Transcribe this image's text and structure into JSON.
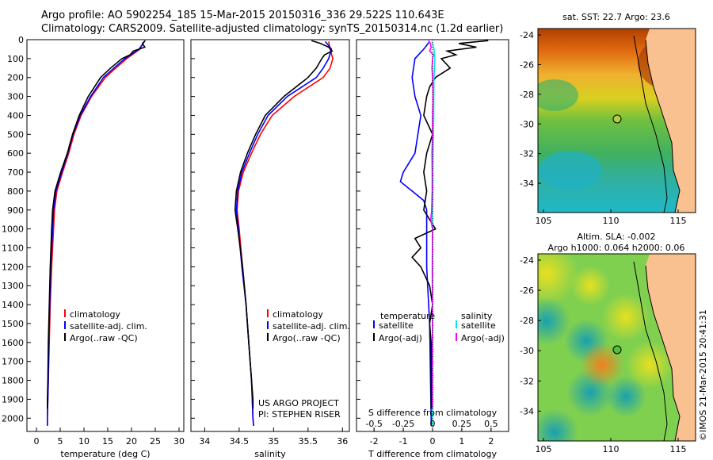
{
  "header": {
    "line1": "Argo profile: AO 5902254_185 15-Mar-2015 20150316_336 29.522S 110.643E",
    "line2": "Climatology: CARS2009. Satellite-adjusted climatology: synTS_20150314.nc (1.2d earlier)"
  },
  "chart_data": [
    {
      "type": "line",
      "xlabel": "temperature (deg C)",
      "xlim": [
        -2,
        31
      ],
      "xticks": [
        "0",
        "5",
        "10",
        "15",
        "20",
        "25",
        "30"
      ],
      "ylim": [
        0,
        2070
      ],
      "yticks": [
        "0",
        "100",
        "200",
        "300",
        "400",
        "500",
        "600",
        "700",
        "800",
        "900",
        "1000",
        "1100",
        "1200",
        "1300",
        "1400",
        "1500",
        "1600",
        "1700",
        "1800",
        "1900",
        "2000"
      ],
      "legend": [
        "climatology",
        "satellite-adj. clim.",
        "Argo(..raw -QC)"
      ],
      "colors": {
        "climatology": "#ff0000",
        "satellite": "#0000ff",
        "argo": "#000000"
      },
      "series": [
        {
          "name": "climatology",
          "depth": [
            10,
            50,
            100,
            150,
            200,
            300,
            400,
            500,
            600,
            700,
            800,
            900,
            1000,
            1200,
            1400,
            1600,
            1800,
            2000,
            2040
          ],
          "values": [
            22.6,
            21.8,
            19.0,
            16.7,
            14.5,
            11.6,
            9.4,
            7.9,
            6.8,
            5.5,
            4.3,
            3.8,
            3.6,
            3.2,
            2.9,
            2.7,
            2.5,
            2.3,
            2.3
          ]
        },
        {
          "name": "satellite-adj. clim.",
          "depth": [
            10,
            50,
            100,
            150,
            200,
            300,
            400,
            500,
            600,
            700,
            800,
            900,
            1000,
            1200,
            1400,
            1600,
            1800,
            2000,
            2040
          ],
          "values": [
            22.7,
            21.6,
            18.6,
            16.3,
            14.1,
            11.4,
            9.2,
            7.7,
            6.6,
            5.3,
            4.1,
            3.6,
            3.4,
            3.0,
            2.8,
            2.6,
            2.5,
            2.3,
            2.3
          ]
        },
        {
          "name": "Argo(..raw -QC)",
          "depth": [
            5,
            20,
            40,
            60,
            80,
            100,
            150,
            200,
            300,
            400,
            500,
            600,
            700,
            800,
            900,
            1000,
            1200,
            1400,
            1600,
            1800,
            1900,
            1950
          ],
          "values": [
            22.9,
            22.3,
            22.8,
            20.4,
            19.7,
            18.0,
            15.6,
            13.5,
            10.9,
            9.0,
            7.6,
            6.5,
            5.1,
            3.9,
            3.4,
            3.2,
            2.9,
            2.7,
            2.5,
            2.4,
            2.3,
            2.3
          ]
        }
      ]
    },
    {
      "type": "line",
      "xlabel": "salinity",
      "xlim": [
        33.8,
        36.1
      ],
      "xticks": [
        "34",
        "34.5",
        "35",
        "35.5",
        "36"
      ],
      "ylim": [
        0,
        2070
      ],
      "legend": [
        "climatology",
        "satellite-adj. clim.",
        "Argo(..raw -QC)"
      ],
      "annotation": [
        "US ARGO PROJECT",
        "PI: STEPHEN RISER"
      ],
      "series": [
        {
          "name": "climatology",
          "depth": [
            10,
            50,
            100,
            150,
            200,
            300,
            400,
            500,
            600,
            700,
            800,
            900,
            1000,
            1200,
            1400,
            1600,
            1800,
            2000,
            2040
          ],
          "values": [
            35.8,
            35.82,
            35.86,
            35.82,
            35.72,
            35.3,
            34.98,
            34.81,
            34.68,
            34.56,
            34.49,
            34.47,
            34.5,
            34.55,
            34.6,
            34.64,
            34.68,
            34.7,
            34.71
          ]
        },
        {
          "name": "satellite-adj. clim.",
          "depth": [
            10,
            50,
            100,
            150,
            200,
            300,
            400,
            500,
            600,
            700,
            800,
            900,
            1000,
            1200,
            1400,
            1600,
            1800,
            2000,
            2040
          ],
          "values": [
            35.75,
            35.84,
            35.8,
            35.72,
            35.62,
            35.2,
            34.92,
            34.77,
            34.65,
            34.54,
            34.48,
            34.46,
            34.49,
            34.54,
            34.6,
            34.64,
            34.68,
            34.7,
            34.71
          ]
        },
        {
          "name": "Argo(..raw -QC)",
          "depth": [
            5,
            20,
            40,
            60,
            80,
            100,
            150,
            200,
            300,
            400,
            500,
            600,
            700,
            800,
            900,
            1000,
            1200,
            1400,
            1600,
            1800,
            1900,
            1950
          ],
          "values": [
            35.55,
            35.68,
            35.8,
            35.85,
            35.74,
            35.7,
            35.62,
            35.5,
            35.15,
            34.88,
            34.74,
            34.62,
            34.52,
            34.46,
            34.44,
            34.48,
            34.55,
            34.6,
            34.64,
            34.68,
            34.7,
            34.7
          ]
        }
      ]
    },
    {
      "type": "line",
      "xlabel": "T difference from climatology",
      "x2label": "S difference from climatology",
      "xlim": [
        -2.6,
        2.6
      ],
      "xticks": [
        "-2",
        "-1",
        "0",
        "1",
        "2"
      ],
      "x2ticks": [
        "-0.5",
        "-0.25",
        "0",
        "0.25",
        "0.5"
      ],
      "ylim": [
        0,
        2070
      ],
      "legend_temperature": [
        "temperature",
        "satellite",
        "Argo(-adj)"
      ],
      "legend_salinity": [
        "salinity",
        "satellite",
        "Argo(-adj)"
      ],
      "colors": {
        "t_satellite": "#0000ff",
        "t_argo": "#000000",
        "s_satellite": "#00e8e8",
        "s_argo": "#ff00ff"
      },
      "series": [
        {
          "name": "T satellite",
          "depth": [
            10,
            50,
            100,
            200,
            300,
            400,
            500,
            600,
            700,
            750,
            800,
            850,
            900,
            1000,
            1200,
            1500,
            2000,
            2040
          ],
          "values": [
            -0.1,
            -0.3,
            -0.6,
            -0.7,
            -0.6,
            -0.4,
            -0.5,
            -0.6,
            -1.0,
            -1.1,
            -0.7,
            -0.3,
            -0.2,
            -0.2,
            -0.2,
            -0.1,
            -0.05,
            -0.05
          ]
        },
        {
          "name": "T Argo(-adj)",
          "depth": [
            5,
            20,
            40,
            60,
            80,
            100,
            150,
            200,
            250,
            300,
            400,
            500,
            600,
            700,
            800,
            900,
            1000,
            1050,
            1100,
            1150,
            1200,
            1300,
            1400,
            1500,
            1600,
            1800,
            1950
          ],
          "values": [
            1.9,
            0.9,
            1.5,
            0.5,
            0.8,
            0.3,
            0.6,
            0.1,
            -0.1,
            -0.2,
            -0.3,
            0.0,
            -0.2,
            -0.3,
            -0.2,
            -0.3,
            0.1,
            -0.6,
            -0.4,
            -0.7,
            -0.4,
            -0.1,
            0.0,
            -0.1,
            -0.05,
            -0.05,
            -0.05
          ]
        },
        {
          "name": "S satellite",
          "depth": [
            10,
            50,
            100,
            200,
            300,
            400,
            500,
            600,
            700,
            800,
            900,
            1000,
            1200,
            1500,
            2000,
            2040
          ],
          "values": [
            -0.02,
            0.05,
            0.08,
            0.05,
            0.04,
            0.04,
            0.03,
            0.02,
            0.01,
            0.01,
            0.0,
            0.0,
            -0.01,
            0.0,
            0.0,
            0.0
          ]
        },
        {
          "name": "S Argo(-adj)",
          "depth": [
            5,
            20,
            40,
            60,
            80,
            100,
            150,
            200,
            300,
            400,
            500,
            600,
            700,
            800,
            900,
            950,
            1000,
            1200,
            1500,
            1800,
            1950
          ],
          "values": [
            -0.14,
            -0.07,
            -0.05,
            -0.1,
            0.03,
            0.0,
            -0.02,
            0.0,
            0.02,
            0.0,
            0.0,
            -0.02,
            -0.01,
            -0.01,
            -0.03,
            -0.06,
            0.0,
            0.0,
            0.0,
            0.0,
            0.0
          ]
        }
      ]
    }
  ],
  "maps": {
    "sst": {
      "title": "sat. SST: 22.7  Argo: 23.6",
      "xticks": [
        "105",
        "110",
        "115"
      ],
      "yticks": [
        "-24",
        "-26",
        "-28",
        "-30",
        "-32",
        "-34"
      ]
    },
    "sla": {
      "title1": "Altim. SLA: -0.002",
      "title2": "Argo h1000: 0.064 h2000: 0.06",
      "xticks": [
        "105",
        "110",
        "115"
      ],
      "yticks": [
        "-24",
        "-26",
        "-28",
        "-30",
        "-32",
        "-34"
      ]
    }
  },
  "credit": "©IMOS 21-Mar-2015 20:41:31"
}
